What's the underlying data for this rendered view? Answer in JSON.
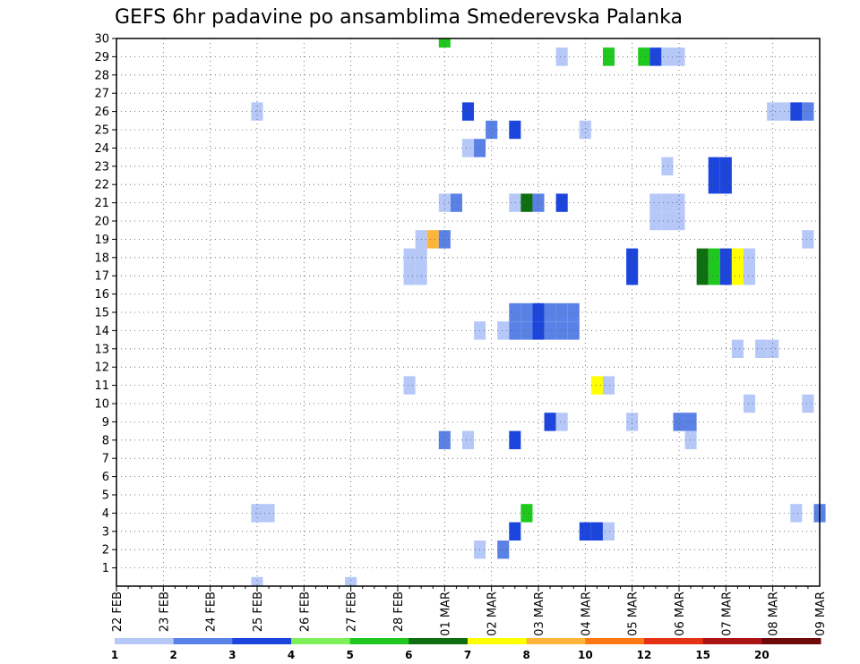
{
  "chart_data": {
    "type": "heatmap",
    "title": "GEFS 6hr padavine po ansamblima Smederevska Palanka",
    "x_tick_labels": [
      "22 FEB",
      "23 FEB",
      "24 FEB",
      "25 FEB",
      "26 FEB",
      "27 FEB",
      "28 FEB",
      "01 MAR",
      "02 MAR",
      "03 MAR",
      "04 MAR",
      "05 MAR",
      "06 MAR",
      "07 MAR",
      "08 MAR",
      "09 MAR"
    ],
    "y_ticks": [
      1,
      2,
      3,
      4,
      5,
      6,
      7,
      8,
      9,
      10,
      11,
      12,
      13,
      14,
      15,
      16,
      17,
      18,
      19,
      20,
      21,
      22,
      23,
      24,
      25,
      26,
      27,
      28,
      29,
      30
    ],
    "y_range": [
      0,
      30
    ],
    "x_range_days": [
      0,
      15
    ],
    "grid": true,
    "colorbar": {
      "labels": [
        "1",
        "2",
        "3",
        "4",
        "5",
        "6",
        "7",
        "8",
        "10",
        "12",
        "15",
        "20"
      ],
      "colors": [
        "#b6c8f8",
        "#5a82e6",
        "#1b45dc",
        "#7ef05a",
        "#1ec81e",
        "#0f6e0f",
        "#ffff00",
        "#ffb43c",
        "#ff7814",
        "#e63214",
        "#aa1414",
        "#6e0a0a"
      ]
    },
    "cells": [
      {
        "d": "01 MAR 00Z",
        "m": 30,
        "v": 5
      },
      {
        "d": "03 MAR 12Z",
        "m": 29,
        "v": 1
      },
      {
        "d": "04 MAR 12Z",
        "m": 29,
        "v": 5
      },
      {
        "d": "05 MAR 06Z",
        "m": 29,
        "v": 5
      },
      {
        "d": "05 MAR 12Z",
        "m": 29,
        "v": 3
      },
      {
        "d": "05 MAR 18Z",
        "m": 29,
        "v": 1
      },
      {
        "d": "06 MAR 00Z",
        "m": 29,
        "v": 1
      },
      {
        "d": "25 FEB 00Z",
        "m": 26,
        "v": 1
      },
      {
        "d": "01 MAR 12Z",
        "m": 26,
        "v": 3
      },
      {
        "d": "08 MAR 00Z",
        "m": 26,
        "v": 1
      },
      {
        "d": "08 MAR 06Z",
        "m": 26,
        "v": 1
      },
      {
        "d": "08 MAR 12Z",
        "m": 26,
        "v": 3
      },
      {
        "d": "08 MAR 18Z",
        "m": 26,
        "v": 2
      },
      {
        "d": "02 MAR 00Z",
        "m": 25,
        "v": 2
      },
      {
        "d": "02 MAR 12Z",
        "m": 25,
        "v": 3
      },
      {
        "d": "04 MAR 00Z",
        "m": 25,
        "v": 1
      },
      {
        "d": "01 MAR 12Z",
        "m": 24,
        "v": 1
      },
      {
        "d": "01 MAR 18Z",
        "m": 24,
        "v": 2
      },
      {
        "d": "05 MAR 18Z",
        "m": 23,
        "v": 1
      },
      {
        "d": "06 MAR 18Z",
        "m": 23,
        "v": 3
      },
      {
        "d": "07 MAR 00Z",
        "m": 23,
        "v": 3
      },
      {
        "d": "06 MAR 18Z",
        "m": 22,
        "v": 3
      },
      {
        "d": "07 MAR 00Z",
        "m": 22,
        "v": 3
      },
      {
        "d": "01 MAR 00Z",
        "m": 21,
        "v": 1
      },
      {
        "d": "01 MAR 06Z",
        "m": 21,
        "v": 2
      },
      {
        "d": "02 MAR 12Z",
        "m": 21,
        "v": 1
      },
      {
        "d": "02 MAR 18Z",
        "m": 21,
        "v": 6
      },
      {
        "d": "03 MAR 00Z",
        "m": 21,
        "v": 2
      },
      {
        "d": "03 MAR 12Z",
        "m": 21,
        "v": 3
      },
      {
        "d": "05 MAR 12Z",
        "m": 21,
        "v": 1
      },
      {
        "d": "05 MAR 18Z",
        "m": 21,
        "v": 1
      },
      {
        "d": "06 MAR 00Z",
        "m": 21,
        "v": 1
      },
      {
        "d": "05 MAR 12Z",
        "m": 20,
        "v": 1
      },
      {
        "d": "05 MAR 18Z",
        "m": 20,
        "v": 1
      },
      {
        "d": "06 MAR 00Z",
        "m": 20,
        "v": 1
      },
      {
        "d": "28 FEB 12Z",
        "m": 19,
        "v": 1
      },
      {
        "d": "28 FEB 18Z",
        "m": 19,
        "v": 8
      },
      {
        "d": "01 MAR 00Z",
        "m": 19,
        "v": 2
      },
      {
        "d": "08 MAR 18Z",
        "m": 19,
        "v": 1
      },
      {
        "d": "28 FEB 06Z",
        "m": 18,
        "v": 1
      },
      {
        "d": "28 FEB 12Z",
        "m": 18,
        "v": 1
      },
      {
        "d": "05 MAR 00Z",
        "m": 18,
        "v": 3
      },
      {
        "d": "06 MAR 12Z",
        "m": 18,
        "v": 6
      },
      {
        "d": "06 MAR 18Z",
        "m": 18,
        "v": 5
      },
      {
        "d": "07 MAR 00Z",
        "m": 18,
        "v": 3
      },
      {
        "d": "07 MAR 06Z",
        "m": 18,
        "v": 7
      },
      {
        "d": "07 MAR 12Z",
        "m": 18,
        "v": 1
      },
      {
        "d": "28 FEB 06Z",
        "m": 17,
        "v": 1
      },
      {
        "d": "28 FEB 12Z",
        "m": 17,
        "v": 1
      },
      {
        "d": "05 MAR 00Z",
        "m": 17,
        "v": 3
      },
      {
        "d": "06 MAR 12Z",
        "m": 17,
        "v": 6
      },
      {
        "d": "06 MAR 18Z",
        "m": 17,
        "v": 5
      },
      {
        "d": "07 MAR 00Z",
        "m": 17,
        "v": 3
      },
      {
        "d": "07 MAR 06Z",
        "m": 17,
        "v": 7
      },
      {
        "d": "07 MAR 12Z",
        "m": 17,
        "v": 1
      },
      {
        "d": "02 MAR 12Z",
        "m": 15,
        "v": 2
      },
      {
        "d": "02 MAR 18Z",
        "m": 15,
        "v": 2
      },
      {
        "d": "03 MAR 00Z",
        "m": 15,
        "v": 3
      },
      {
        "d": "03 MAR 06Z",
        "m": 15,
        "v": 2
      },
      {
        "d": "03 MAR 12Z",
        "m": 15,
        "v": 2
      },
      {
        "d": "03 MAR 18Z",
        "m": 15,
        "v": 2
      },
      {
        "d": "01 MAR 18Z",
        "m": 14,
        "v": 1
      },
      {
        "d": "02 MAR 06Z",
        "m": 14,
        "v": 1
      },
      {
        "d": "02 MAR 12Z",
        "m": 14,
        "v": 2
      },
      {
        "d": "02 MAR 18Z",
        "m": 14,
        "v": 2
      },
      {
        "d": "03 MAR 00Z",
        "m": 14,
        "v": 3
      },
      {
        "d": "03 MAR 06Z",
        "m": 14,
        "v": 2
      },
      {
        "d": "03 MAR 12Z",
        "m": 14,
        "v": 2
      },
      {
        "d": "03 MAR 18Z",
        "m": 14,
        "v": 2
      },
      {
        "d": "07 MAR 06Z",
        "m": 13,
        "v": 1
      },
      {
        "d": "07 MAR 18Z",
        "m": 13,
        "v": 1
      },
      {
        "d": "08 MAR 00Z",
        "m": 13,
        "v": 1
      },
      {
        "d": "28 FEB 06Z",
        "m": 11,
        "v": 1
      },
      {
        "d": "04 MAR 06Z",
        "m": 11,
        "v": 7
      },
      {
        "d": "04 MAR 12Z",
        "m": 11,
        "v": 1
      },
      {
        "d": "07 MAR 12Z",
        "m": 10,
        "v": 1
      },
      {
        "d": "08 MAR 18Z",
        "m": 10,
        "v": 1
      },
      {
        "d": "03 MAR 06Z",
        "m": 9,
        "v": 3
      },
      {
        "d": "03 MAR 12Z",
        "m": 9,
        "v": 1
      },
      {
        "d": "05 MAR 00Z",
        "m": 9,
        "v": 1
      },
      {
        "d": "06 MAR 00Z",
        "m": 9,
        "v": 2
      },
      {
        "d": "06 MAR 06Z",
        "m": 9,
        "v": 2
      },
      {
        "d": "01 MAR 00Z",
        "m": 8,
        "v": 2
      },
      {
        "d": "01 MAR 12Z",
        "m": 8,
        "v": 1
      },
      {
        "d": "02 MAR 12Z",
        "m": 8,
        "v": 3
      },
      {
        "d": "06 MAR 06Z",
        "m": 8,
        "v": 1
      },
      {
        "d": "25 FEB 00Z",
        "m": 4,
        "v": 1
      },
      {
        "d": "25 FEB 06Z",
        "m": 4,
        "v": 1
      },
      {
        "d": "02 MAR 18Z",
        "m": 4,
        "v": 5
      },
      {
        "d": "08 MAR 12Z",
        "m": 4,
        "v": 1
      },
      {
        "d": "09 MAR 00Z",
        "m": 4,
        "v": 2
      },
      {
        "d": "02 MAR 12Z",
        "m": 3,
        "v": 3
      },
      {
        "d": "04 MAR 00Z",
        "m": 3,
        "v": 3
      },
      {
        "d": "04 MAR 06Z",
        "m": 3,
        "v": 3
      },
      {
        "d": "04 MAR 12Z",
        "m": 3,
        "v": 1
      },
      {
        "d": "01 MAR 18Z",
        "m": 2,
        "v": 1
      },
      {
        "d": "02 MAR 06Z",
        "m": 2,
        "v": 2
      },
      {
        "d": "25 FEB 00Z",
        "m": 0,
        "v": 1
      },
      {
        "d": "27 FEB 00Z",
        "m": 0,
        "v": 1
      }
    ]
  }
}
